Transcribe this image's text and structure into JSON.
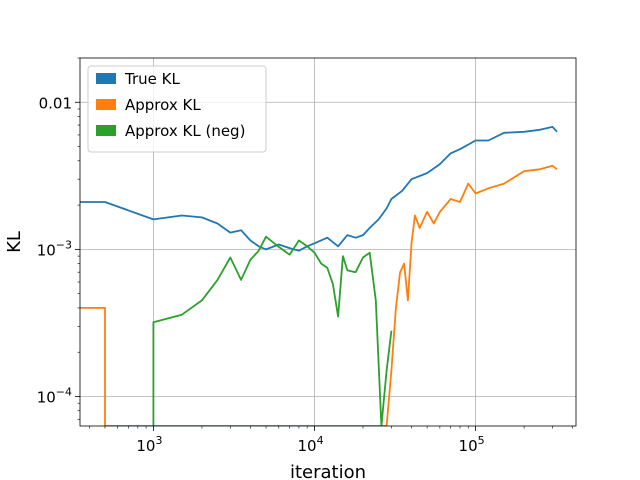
{
  "chart_data": {
    "type": "line",
    "xscale": "log",
    "yscale": "log",
    "xlabel": "iteration",
    "ylabel": "KL",
    "xlim": [
      350,
      420000
    ],
    "ylim": [
      6.3e-05,
      0.02
    ],
    "xticks": [
      {
        "value": 1000,
        "base": "10",
        "exp": "3"
      },
      {
        "value": 10000,
        "base": "10",
        "exp": "4"
      },
      {
        "value": 100000,
        "base": "10",
        "exp": "5"
      }
    ],
    "yticks": [
      {
        "value": 0.0001,
        "base": "10",
        "exp": "−4"
      },
      {
        "value": 0.001,
        "base": "10",
        "exp": "−3"
      },
      {
        "value": 0.01,
        "label": "0.01"
      }
    ],
    "grid": true,
    "legend_position": "top-left",
    "series": [
      {
        "name": "True KL",
        "color": "#1f77b4",
        "x": [
          350,
          500,
          1000,
          1500,
          2000,
          2500,
          3000,
          3500,
          4000,
          4500,
          5000,
          6000,
          7000,
          8000,
          9000,
          10000,
          12000,
          14000,
          16000,
          18000,
          20000,
          22000,
          25000,
          28000,
          30000,
          35000,
          40000,
          50000,
          60000,
          70000,
          80000,
          100000,
          120000,
          150000,
          200000,
          250000,
          300000,
          320000
        ],
        "values": [
          0.0021,
          0.0021,
          0.0016,
          0.0017,
          0.00165,
          0.0015,
          0.0013,
          0.00135,
          0.00115,
          0.00105,
          0.001,
          0.00108,
          0.00102,
          0.00098,
          0.00105,
          0.0011,
          0.0012,
          0.00105,
          0.00125,
          0.0012,
          0.00125,
          0.0014,
          0.0016,
          0.0019,
          0.0022,
          0.0025,
          0.003,
          0.0033,
          0.0038,
          0.0045,
          0.0048,
          0.0055,
          0.0055,
          0.0062,
          0.0063,
          0.0065,
          0.0068,
          0.0063
        ]
      },
      {
        "name": "Approx KL",
        "color": "#ff7f0e",
        "x": [
          350,
          500,
          500,
          28000,
          30000,
          32000,
          34000,
          36000,
          38000,
          40000,
          42000,
          45000,
          50000,
          55000,
          60000,
          70000,
          80000,
          90000,
          100000,
          120000,
          150000,
          200000,
          250000,
          300000,
          320000
        ],
        "values": [
          0.0004,
          0.0004,
          6.3e-05,
          6.3e-05,
          0.00015,
          0.0004,
          0.0007,
          0.0008,
          0.00045,
          0.0011,
          0.0017,
          0.0014,
          0.0018,
          0.0015,
          0.0018,
          0.0022,
          0.0021,
          0.0028,
          0.0024,
          0.0026,
          0.0028,
          0.0034,
          0.0035,
          0.0037,
          0.0035
        ]
      },
      {
        "name": "Approx KL (neg)",
        "color": "#2ca02c",
        "x": [
          1000,
          1000,
          1500,
          2000,
          2500,
          3000,
          3500,
          4000,
          4500,
          5000,
          6000,
          7000,
          8000,
          9000,
          10000,
          11000,
          12000,
          13000,
          14000,
          15000,
          16000,
          18000,
          20000,
          22000,
          24000,
          26000,
          28000,
          30000
        ],
        "values": [
          6.3e-05,
          0.00032,
          0.00036,
          0.00045,
          0.00062,
          0.00088,
          0.00062,
          0.00085,
          0.00098,
          0.00122,
          0.00104,
          0.00092,
          0.00115,
          0.00105,
          0.00095,
          0.0008,
          0.00075,
          0.00058,
          0.00035,
          0.0009,
          0.00072,
          0.0007,
          0.00088,
          0.00095,
          0.00045,
          6.3e-05,
          0.00015,
          0.00028
        ]
      }
    ]
  }
}
